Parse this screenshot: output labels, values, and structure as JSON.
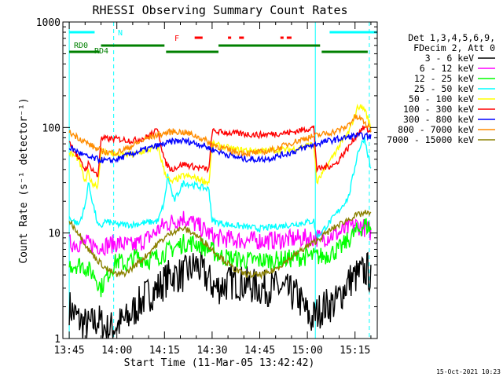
{
  "chart_data": {
    "type": "line",
    "title": "RHESSI Observing Summary Count Rates",
    "xlabel": "Start Time (11-Mar-05 13:42:42)",
    "ylabel": "Count Rate (s⁻¹ detector⁻¹)",
    "yscale": "log",
    "ylim": [
      1,
      1000
    ],
    "xlim_minutes": [
      -2,
      97
    ],
    "x_ticks": [
      {
        "label": "13:45",
        "minute": 0
      },
      {
        "label": "14:00",
        "minute": 15
      },
      {
        "label": "14:15",
        "minute": 30
      },
      {
        "label": "14:30",
        "minute": 45
      },
      {
        "label": "14:45",
        "minute": 60
      },
      {
        "label": "15:00",
        "minute": 75
      },
      {
        "label": "15:15",
        "minute": 90
      }
    ],
    "y_ticks": [
      {
        "label": "1",
        "value": 1
      },
      {
        "label": "10",
        "value": 10
      },
      {
        "label": "100",
        "value": 100
      },
      {
        "label": "1000",
        "value": 1000
      }
    ],
    "legend_header": [
      "Det 1,3,4,5,6,9,",
      "FDecim 2, Att 0"
    ],
    "legend_placement": "right",
    "series": [
      {
        "name": "3 - 6 keV",
        "color": "#000000",
        "points": [
          [
            0,
            2
          ],
          [
            3,
            1.5
          ],
          [
            6,
            1.3
          ],
          [
            9,
            1.5
          ],
          [
            12,
            1.2
          ],
          [
            18,
            1.5
          ],
          [
            24,
            2.5
          ],
          [
            28,
            3
          ],
          [
            32,
            4
          ],
          [
            36,
            4
          ],
          [
            40,
            5
          ],
          [
            46,
            3
          ],
          [
            52,
            3.5
          ],
          [
            60,
            3
          ],
          [
            66,
            3
          ],
          [
            72,
            2.5
          ],
          [
            76,
            1.5
          ],
          [
            80,
            2
          ],
          [
            84,
            2.2
          ],
          [
            88,
            3.5
          ],
          [
            91,
            4
          ],
          [
            94,
            4.5
          ],
          [
            95,
            3.5
          ]
        ]
      },
      {
        "name": "6 - 12 keV",
        "color": "#ff00ff",
        "points": [
          [
            0,
            8
          ],
          [
            5,
            8
          ],
          [
            10,
            7.5
          ],
          [
            15,
            8
          ],
          [
            20,
            7.5
          ],
          [
            25,
            9
          ],
          [
            30,
            12
          ],
          [
            36,
            14
          ],
          [
            40,
            12
          ],
          [
            46,
            9
          ],
          [
            55,
            8.5
          ],
          [
            65,
            8.5
          ],
          [
            75,
            9
          ],
          [
            80,
            9
          ],
          [
            85,
            10
          ],
          [
            90,
            12
          ],
          [
            94,
            11
          ],
          [
            95,
            10
          ]
        ]
      },
      {
        "name": "12 - 25 keV",
        "color": "#00ff00",
        "points": [
          [
            0,
            5
          ],
          [
            4,
            5
          ],
          [
            8,
            4
          ],
          [
            10,
            3
          ],
          [
            12,
            4
          ],
          [
            15,
            5.5
          ],
          [
            18,
            5
          ],
          [
            21,
            6
          ],
          [
            25,
            5.5
          ],
          [
            28,
            6
          ],
          [
            32,
            7
          ],
          [
            36,
            8
          ],
          [
            40,
            8
          ],
          [
            44,
            7
          ],
          [
            48,
            6
          ],
          [
            55,
            5.5
          ],
          [
            65,
            5.5
          ],
          [
            75,
            6
          ],
          [
            80,
            6
          ],
          [
            85,
            7
          ],
          [
            90,
            10
          ],
          [
            93,
            12
          ],
          [
            95,
            11
          ]
        ]
      },
      {
        "name": "25 - 50 keV",
        "color": "#00ffff",
        "points": [
          [
            0,
            14
          ],
          [
            3,
            12
          ],
          [
            5,
            18
          ],
          [
            6,
            30
          ],
          [
            7,
            22
          ],
          [
            9,
            12
          ],
          [
            10,
            11
          ],
          [
            11,
            13
          ],
          [
            15,
            12
          ],
          [
            20,
            12
          ],
          [
            28,
            13
          ],
          [
            30,
            20
          ],
          [
            31,
            35
          ],
          [
            33,
            20
          ],
          [
            36,
            30
          ],
          [
            40,
            28
          ],
          [
            44,
            26
          ],
          [
            45,
            13
          ],
          [
            50,
            12
          ],
          [
            60,
            11
          ],
          [
            70,
            12
          ],
          [
            77,
            13
          ],
          [
            78,
            9
          ],
          [
            84,
            15
          ],
          [
            88,
            22
          ],
          [
            91,
            60
          ],
          [
            93,
            80
          ],
          [
            95,
            40
          ]
        ]
      },
      {
        "name": "50 - 100 keV",
        "color": "#ffff00",
        "points": [
          [
            0,
            58
          ],
          [
            3,
            50
          ],
          [
            5,
            30
          ],
          [
            6,
            38
          ],
          [
            7,
            30
          ],
          [
            9,
            28
          ],
          [
            10,
            60
          ],
          [
            15,
            55
          ],
          [
            20,
            55
          ],
          [
            24,
            60
          ],
          [
            28,
            65
          ],
          [
            30,
            38
          ],
          [
            32,
            30
          ],
          [
            36,
            35
          ],
          [
            40,
            33
          ],
          [
            44,
            30
          ],
          [
            45,
            70
          ],
          [
            52,
            62
          ],
          [
            60,
            60
          ],
          [
            70,
            62
          ],
          [
            77,
            70
          ],
          [
            78,
            30
          ],
          [
            84,
            60
          ],
          [
            88,
            90
          ],
          [
            91,
            160
          ],
          [
            93,
            150
          ],
          [
            95,
            100
          ]
        ]
      },
      {
        "name": "100 - 300 keV",
        "color": "#ff0000",
        "points": [
          [
            0,
            75
          ],
          [
            3,
            50
          ],
          [
            5,
            40
          ],
          [
            6,
            45
          ],
          [
            8,
            38
          ],
          [
            9,
            34
          ],
          [
            10,
            78
          ],
          [
            15,
            78
          ],
          [
            20,
            75
          ],
          [
            24,
            80
          ],
          [
            28,
            95
          ],
          [
            30,
            48
          ],
          [
            32,
            40
          ],
          [
            36,
            45
          ],
          [
            40,
            42
          ],
          [
            44,
            40
          ],
          [
            45,
            92
          ],
          [
            52,
            88
          ],
          [
            60,
            85
          ],
          [
            70,
            90
          ],
          [
            77,
            100
          ],
          [
            78,
            40
          ],
          [
            84,
            45
          ],
          [
            86,
            55
          ],
          [
            88,
            65
          ],
          [
            91,
            90
          ],
          [
            93,
            100
          ],
          [
            95,
            90
          ]
        ]
      },
      {
        "name": "300 - 800 keV",
        "color": "#0000ff",
        "points": [
          [
            0,
            65
          ],
          [
            3,
            58
          ],
          [
            6,
            52
          ],
          [
            9,
            50
          ],
          [
            12,
            48
          ],
          [
            15,
            50
          ],
          [
            18,
            54
          ],
          [
            21,
            58
          ],
          [
            24,
            62
          ],
          [
            27,
            66
          ],
          [
            30,
            70
          ],
          [
            33,
            74
          ],
          [
            36,
            75
          ],
          [
            39,
            72
          ],
          [
            42,
            68
          ],
          [
            45,
            62
          ],
          [
            48,
            58
          ],
          [
            51,
            54
          ],
          [
            54,
            51
          ],
          [
            57,
            50
          ],
          [
            60,
            50
          ],
          [
            63,
            51
          ],
          [
            66,
            54
          ],
          [
            69,
            57
          ],
          [
            72,
            61
          ],
          [
            75,
            66
          ],
          [
            78,
            70
          ],
          [
            81,
            74
          ],
          [
            84,
            77
          ],
          [
            87,
            80
          ],
          [
            90,
            84
          ],
          [
            93,
            83
          ],
          [
            95,
            82
          ]
        ]
      },
      {
        "name": "800 - 7000 keV",
        "color": "#ff8c00",
        "points": [
          [
            0,
            90
          ],
          [
            3,
            80
          ],
          [
            6,
            70
          ],
          [
            9,
            62
          ],
          [
            12,
            58
          ],
          [
            15,
            58
          ],
          [
            18,
            63
          ],
          [
            21,
            70
          ],
          [
            24,
            78
          ],
          [
            27,
            84
          ],
          [
            30,
            88
          ],
          [
            33,
            92
          ],
          [
            36,
            90
          ],
          [
            39,
            85
          ],
          [
            42,
            78
          ],
          [
            45,
            70
          ],
          [
            48,
            64
          ],
          [
            51,
            60
          ],
          [
            54,
            58
          ],
          [
            57,
            57
          ],
          [
            60,
            58
          ],
          [
            63,
            60
          ],
          [
            66,
            64
          ],
          [
            69,
            70
          ],
          [
            72,
            75
          ],
          [
            75,
            80
          ],
          [
            78,
            84
          ],
          [
            81,
            88
          ],
          [
            84,
            92
          ],
          [
            87,
            100
          ],
          [
            90,
            125
          ],
          [
            92,
            120
          ],
          [
            95,
            95
          ]
        ]
      },
      {
        "name": "7000 - 15000 keV",
        "color": "#8b8000",
        "points": [
          [
            0,
            13
          ],
          [
            3,
            10
          ],
          [
            6,
            7
          ],
          [
            9,
            5.5
          ],
          [
            12,
            4.5
          ],
          [
            15,
            4
          ],
          [
            18,
            4.2
          ],
          [
            21,
            5
          ],
          [
            24,
            6
          ],
          [
            27,
            7.5
          ],
          [
            30,
            9
          ],
          [
            33,
            10.5
          ],
          [
            36,
            11
          ],
          [
            39,
            10
          ],
          [
            42,
            8.5
          ],
          [
            45,
            7
          ],
          [
            48,
            5.8
          ],
          [
            51,
            4.8
          ],
          [
            54,
            4.2
          ],
          [
            57,
            4
          ],
          [
            60,
            4
          ],
          [
            63,
            4.2
          ],
          [
            66,
            4.8
          ],
          [
            69,
            5.6
          ],
          [
            72,
            6.5
          ],
          [
            75,
            7.5
          ],
          [
            78,
            8.5
          ],
          [
            81,
            10
          ],
          [
            84,
            11.5
          ],
          [
            87,
            13
          ],
          [
            90,
            14.5
          ],
          [
            93,
            15.5
          ],
          [
            95,
            15
          ]
        ]
      }
    ],
    "annotations": {
      "state_bars": [
        {
          "label": "N",
          "color": "#00ffff",
          "segments": [
            [
              0,
              8
            ],
            [
              82,
              97
            ]
          ]
        },
        {
          "label": "F",
          "color": "#ff0000",
          "segments": [
            [
              39.5,
              42
            ],
            [
              50,
              51
            ],
            [
              53.5,
              55
            ],
            [
              66.5,
              67.5
            ],
            [
              68.5,
              70
            ]
          ]
        },
        {
          "label": "RD0",
          "color": "#008000",
          "segments": [
            [
              0,
              9.5
            ],
            [
              30.5,
              47
            ],
            [
              79.5,
              94
            ]
          ]
        },
        {
          "label": "RD4",
          "color": "#008000",
          "segments": [
            [
              10,
              30
            ],
            [
              47,
              79
            ]
          ]
        }
      ],
      "vlines": [
        {
          "minute": 0,
          "color": "#00ffff",
          "style": "solid"
        },
        {
          "minute": 14,
          "color": "#00ffff",
          "style": "dashed"
        },
        {
          "minute": 77.5,
          "color": "#00ffff",
          "style": "solid"
        },
        {
          "minute": 94.5,
          "color": "#00ffff",
          "style": "dashed"
        }
      ]
    },
    "timestamp": "15-Oct-2021 10:23"
  }
}
